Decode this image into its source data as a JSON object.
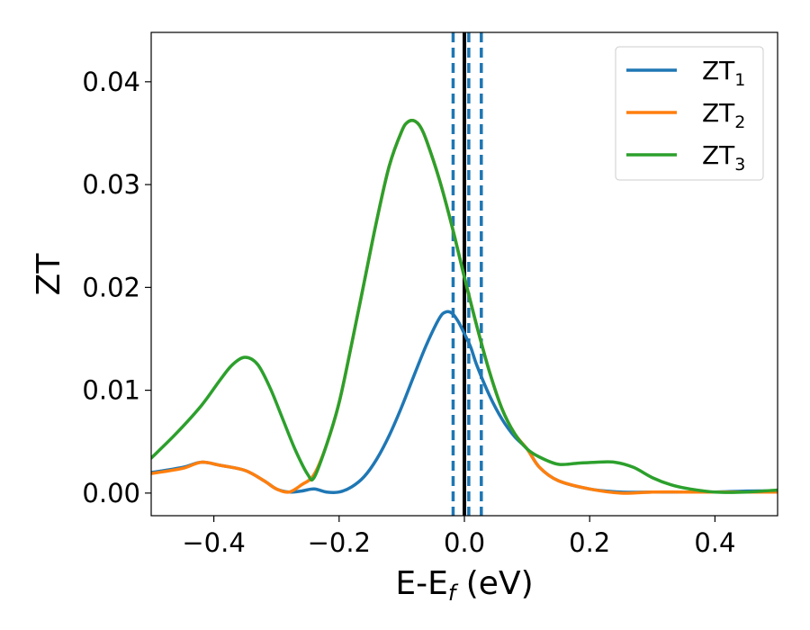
{
  "chart_data": {
    "type": "line",
    "xlabel": {
      "main": "E-E",
      "sub": "f",
      "suffix": " (eV)"
    },
    "ylabel": "ZT",
    "xlim": [
      -0.5,
      0.5
    ],
    "ylim": [
      -0.0022,
      0.0448
    ],
    "xticks": [
      -0.4,
      -0.2,
      0.0,
      0.2,
      0.4
    ],
    "xtick_labels": [
      "−0.4",
      "−0.2",
      "0.0",
      "0.2",
      "0.4"
    ],
    "yticks": [
      0.0,
      0.01,
      0.02,
      0.03,
      0.04
    ],
    "ytick_labels": [
      "0.00",
      "0.01",
      "0.02",
      "0.03",
      "0.04"
    ],
    "legend_position": "top-right",
    "series": [
      {
        "name": {
          "main": "ZT",
          "sub": "1"
        },
        "color": "#1f77b4",
        "x": [
          -0.5,
          -0.45,
          -0.42,
          -0.39,
          -0.35,
          -0.32,
          -0.3,
          -0.28,
          -0.26,
          -0.24,
          -0.22,
          -0.2,
          -0.18,
          -0.16,
          -0.14,
          -0.12,
          -0.1,
          -0.08,
          -0.06,
          -0.04,
          -0.03,
          -0.02,
          -0.01,
          0.0,
          0.01,
          0.02,
          0.04,
          0.06,
          0.08,
          0.1,
          0.12,
          0.15,
          0.2,
          0.25,
          0.3,
          0.35,
          0.4,
          0.45,
          0.5
        ],
        "y": [
          0.002,
          0.0025,
          0.003,
          0.0027,
          0.0022,
          0.0012,
          0.0004,
          0.0001,
          0.0002,
          0.0004,
          0.0001,
          0.0001,
          0.0006,
          0.0016,
          0.0033,
          0.0056,
          0.0084,
          0.0115,
          0.0145,
          0.017,
          0.0176,
          0.0175,
          0.0167,
          0.0155,
          0.0142,
          0.0124,
          0.0095,
          0.0072,
          0.0055,
          0.0043,
          0.0025,
          0.0012,
          0.0004,
          0.0001,
          0.0001,
          0.0001,
          0.0001,
          0.0002,
          0.0002
        ]
      },
      {
        "name": {
          "main": "ZT",
          "sub": "2"
        },
        "color": "#ff7f0e",
        "x": [
          -0.5,
          -0.45,
          -0.42,
          -0.39,
          -0.35,
          -0.32,
          -0.3,
          -0.28,
          -0.26,
          -0.24,
          -0.22,
          -0.2,
          -0.18,
          -0.16,
          -0.14,
          -0.12,
          -0.1,
          -0.09,
          -0.08,
          -0.07,
          -0.06,
          -0.04,
          -0.02,
          0.0,
          0.02,
          0.04,
          0.06,
          0.08,
          0.1,
          0.12,
          0.15,
          0.2,
          0.25,
          0.3,
          0.35,
          0.4,
          0.45,
          0.5
        ],
        "y": [
          0.0019,
          0.0024,
          0.003,
          0.0027,
          0.0022,
          0.0012,
          0.0004,
          0.0001,
          0.0008,
          0.0018,
          0.0047,
          0.0088,
          0.0145,
          0.0205,
          0.0265,
          0.0318,
          0.0352,
          0.0361,
          0.0362,
          0.0356,
          0.0342,
          0.0305,
          0.026,
          0.021,
          0.0162,
          0.0118,
          0.0082,
          0.0058,
          0.0043,
          0.0025,
          0.0012,
          0.0004,
          0.0,
          0.0001,
          0.0001,
          0.0001,
          0.0001,
          0.0001
        ]
      },
      {
        "name": {
          "main": "ZT",
          "sub": "3"
        },
        "color": "#2ca02c",
        "x": [
          -0.5,
          -0.46,
          -0.42,
          -0.39,
          -0.37,
          -0.35,
          -0.33,
          -0.31,
          -0.29,
          -0.27,
          -0.25,
          -0.24,
          -0.22,
          -0.2,
          -0.18,
          -0.16,
          -0.14,
          -0.12,
          -0.1,
          -0.09,
          -0.08,
          -0.07,
          -0.06,
          -0.04,
          -0.02,
          0.0,
          0.02,
          0.04,
          0.06,
          0.08,
          0.1,
          0.12,
          0.15,
          0.18,
          0.21,
          0.24,
          0.27,
          0.3,
          0.33,
          0.36,
          0.4,
          0.45,
          0.5
        ],
        "y": [
          0.0034,
          0.0058,
          0.0085,
          0.011,
          0.0125,
          0.0132,
          0.0125,
          0.0102,
          0.0072,
          0.0042,
          0.0018,
          0.0015,
          0.0047,
          0.0088,
          0.0145,
          0.0205,
          0.0265,
          0.0318,
          0.0352,
          0.0361,
          0.0362,
          0.0356,
          0.0342,
          0.0305,
          0.026,
          0.021,
          0.0162,
          0.0118,
          0.0082,
          0.0058,
          0.0043,
          0.0035,
          0.0028,
          0.0029,
          0.003,
          0.003,
          0.0025,
          0.0015,
          0.0008,
          0.0004,
          0.0001,
          0.0001,
          0.0003
        ]
      }
    ],
    "vlines": [
      {
        "x": 0.0,
        "style": "solid",
        "color": "#000000"
      },
      {
        "x": -0.018,
        "style": "dashed",
        "color": "#1f77b4"
      },
      {
        "x": 0.007,
        "style": "dashed",
        "color": "#1f77b4"
      },
      {
        "x": 0.027,
        "style": "dashed",
        "color": "#1f77b4"
      }
    ]
  }
}
